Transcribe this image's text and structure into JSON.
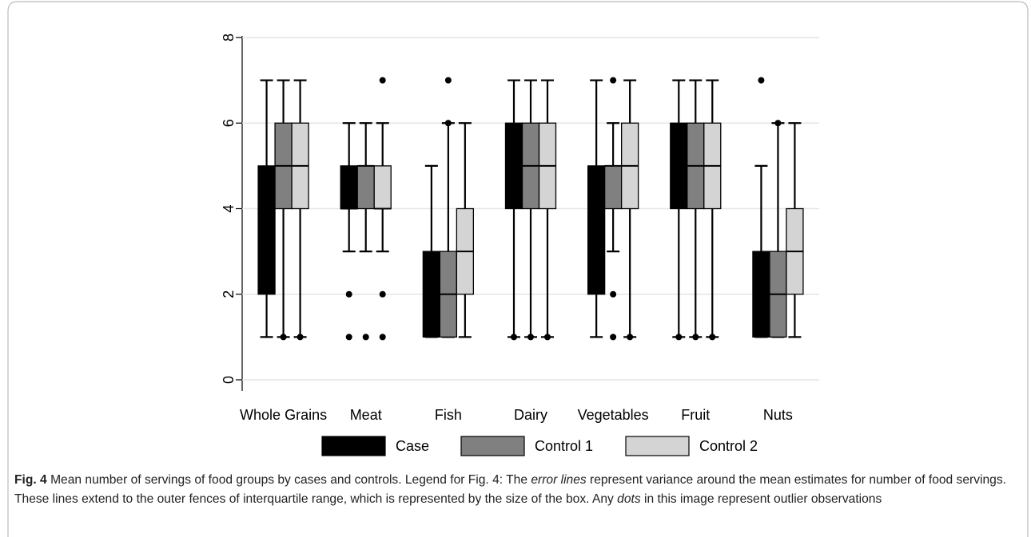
{
  "chart_data": {
    "type": "box",
    "categories": [
      "Whole Grains",
      "Meat",
      "Fish",
      "Dairy",
      "Vegetables",
      "Fruit",
      "Nuts"
    ],
    "ylim": [
      0,
      8
    ],
    "yticks": [
      0,
      2,
      4,
      6,
      8
    ],
    "grid": true,
    "legend": "bottom",
    "series": [
      {
        "name": "Case",
        "color": "#000000",
        "whisker_low": [
          1,
          3,
          1,
          1,
          1,
          1,
          1
        ],
        "q1": [
          2,
          4,
          1,
          4,
          2,
          4,
          1
        ],
        "median": [
          4,
          4,
          2,
          5,
          4,
          5,
          2
        ],
        "q3": [
          5,
          5,
          3,
          6,
          5,
          6,
          3
        ],
        "whisker_high": [
          7,
          6,
          5,
          7,
          7,
          7,
          5
        ],
        "outliers": [
          [],
          [
            2,
            1
          ],
          [],
          [
            1
          ],
          [],
          [
            1
          ],
          [
            7
          ]
        ]
      },
      {
        "name": "Control 1",
        "color": "#808080",
        "whisker_low": [
          1,
          3,
          1,
          1,
          3,
          1,
          1
        ],
        "q1": [
          4,
          4,
          1,
          4,
          4,
          4,
          1
        ],
        "median": [
          5,
          5,
          2,
          5,
          5,
          5,
          2
        ],
        "q3": [
          6,
          5,
          3,
          6,
          5,
          6,
          3
        ],
        "whisker_high": [
          7,
          6,
          6,
          7,
          6,
          7,
          6
        ],
        "outliers": [
          [
            1
          ],
          [
            1
          ],
          [
            7,
            6
          ],
          [
            1
          ],
          [
            7,
            2,
            1
          ],
          [
            1
          ],
          [
            6
          ]
        ]
      },
      {
        "name": "Control 2",
        "color": "#d4d4d4",
        "whisker_low": [
          1,
          3,
          1,
          1,
          1,
          1,
          1
        ],
        "q1": [
          4,
          4,
          2,
          4,
          4,
          4,
          2
        ],
        "median": [
          5,
          4,
          3,
          5,
          5,
          5,
          3
        ],
        "q3": [
          6,
          5,
          4,
          6,
          6,
          6,
          4
        ],
        "whisker_high": [
          7,
          6,
          6,
          7,
          7,
          7,
          6
        ],
        "outliers": [
          [
            1
          ],
          [
            7,
            2,
            1
          ],
          [],
          [
            1
          ],
          [
            1
          ],
          [
            1
          ],
          []
        ]
      }
    ]
  },
  "caption": {
    "label": "Fig. 4",
    "text": [
      " Mean number of servings of food groups by cases and controls. Legend for Fig. 4: The ",
      "error lines",
      " represent variance around the mean estimates for number of food servings. These lines extend to the outer fences of interquartile range, which is represented by the size of the box. Any ",
      "dots",
      " in this image represent outlier observations"
    ]
  }
}
